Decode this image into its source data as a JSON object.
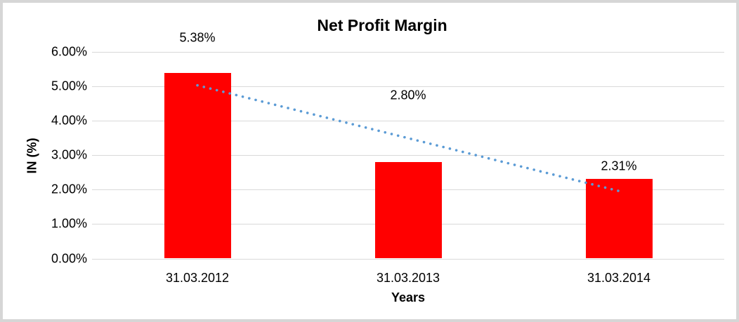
{
  "chart_data": {
    "type": "bar",
    "title": "Net Profit Margin",
    "xlabel": "Years",
    "ylabel": "IN (%)",
    "categories": [
      "31.03.2012",
      "31.03.2013",
      "31.03.2014"
    ],
    "values": [
      5.38,
      2.8,
      2.31
    ],
    "data_labels": [
      "5.38%",
      "2.80%",
      "2.31%"
    ],
    "y_ticks": {
      "labels": [
        "0.00%",
        "1.00%",
        "2.00%",
        "3.00%",
        "4.00%",
        "5.00%",
        "6.00%"
      ],
      "values": [
        0,
        1,
        2,
        3,
        4,
        5,
        6
      ]
    },
    "ylim": [
      0,
      6
    ],
    "grid": true,
    "legend": "none",
    "bar_color": "#FF0000",
    "gridline_color": "#d9d9d9",
    "text_color": "#000000",
    "frame_border_color": "#d6d6d6",
    "trendline": {
      "type": "linear",
      "style": "dotted",
      "color": "#5b9bd5",
      "start_value": 5.03,
      "end_value": 1.96
    }
  }
}
